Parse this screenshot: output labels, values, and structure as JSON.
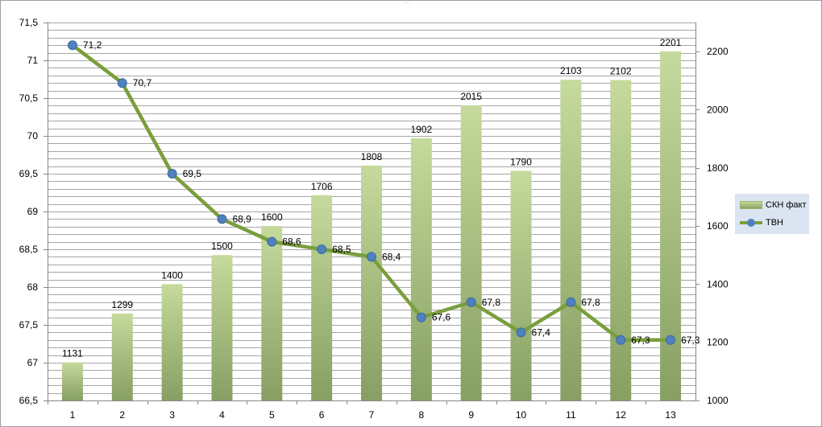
{
  "chart_data": {
    "type": "bar",
    "categories": [
      "1",
      "2",
      "3",
      "4",
      "5",
      "6",
      "7",
      "8",
      "9",
      "10",
      "11",
      "12",
      "13"
    ],
    "series": [
      {
        "name": "СКН факт",
        "type": "bar",
        "axis": "right",
        "values": [
          1131,
          1299,
          1400,
          1500,
          1600,
          1706,
          1808,
          1902,
          2015,
          1790,
          2103,
          2102,
          2201
        ],
        "labels": [
          "1131",
          "1299",
          "1400",
          "1500",
          "1600",
          "1706",
          "1808",
          "1902",
          "2015",
          "1790",
          "2103",
          "2102",
          "2201"
        ]
      },
      {
        "name": "ТВН",
        "type": "line",
        "axis": "left",
        "values": [
          71.2,
          70.7,
          69.5,
          68.9,
          68.6,
          68.5,
          68.4,
          67.6,
          67.8,
          67.4,
          67.8,
          67.3,
          67.3
        ],
        "labels": [
          "71,2",
          "70,7",
          "69,5",
          "68,9",
          "68,6",
          "68,5",
          "68,4",
          "67,6",
          "67,8",
          "67,4",
          "67,8",
          "67,3",
          "67,3"
        ]
      }
    ],
    "y_left": {
      "min": 66.5,
      "max": 71.5,
      "tick_labels": [
        "66,5",
        "67",
        "67,5",
        "68",
        "68,5",
        "69",
        "69,5",
        "70",
        "70,5",
        "71",
        "71,5"
      ]
    },
    "y_right": {
      "min": 1000,
      "max": 2300,
      "ticks": [
        1000,
        1200,
        1400,
        1600,
        1800,
        2000,
        2200
      ],
      "tick_labels": [
        "1000",
        "1200",
        "1400",
        "1600",
        "1800",
        "2000",
        "2200"
      ]
    },
    "grid": true,
    "legend_position": "right",
    "colors": {
      "bar_top": "#c5da9c",
      "bar_bottom": "#879f63",
      "line": "#7a9e3c",
      "marker": "#4f81bd",
      "grid": "#a6a6a6",
      "legend_bg": "#dbe5f1"
    }
  },
  "legend": {
    "bar_label": "СКН факт",
    "line_label": "ТВН"
  }
}
